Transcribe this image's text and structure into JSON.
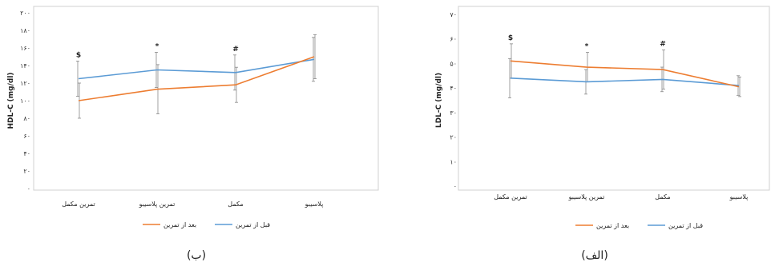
{
  "chart_data": [
    {
      "type": "line",
      "ylabel": "HDL-C (mg/dl)",
      "ylim": [
        0,
        200
      ],
      "yticks": [
        "۰",
        "۲۰",
        "۴۰",
        "۶۰",
        "۸۰",
        "۱۰۰",
        "۱۲۰",
        "۱۴۰",
        "۱۶۰",
        "۱۸۰",
        "۲۰۰"
      ],
      "categories": [
        "تمرین مکمل",
        "تمرین پلاسیبو",
        "مکمل",
        "پلاسیبو"
      ],
      "series": [
        {
          "name": "قبل از تمرین",
          "color": "#5B9BD5",
          "values": [
            125,
            135,
            132,
            147
          ],
          "errors": [
            20,
            20,
            20,
            25
          ]
        },
        {
          "name": "بعد از تمرین",
          "color": "#ED7D31",
          "values": [
            100,
            113,
            118,
            150
          ],
          "errors": [
            20,
            28,
            20,
            25
          ]
        }
      ],
      "annotations": [
        "$",
        "*",
        "#",
        ""
      ],
      "legend_position": "bottom",
      "grid": false,
      "caption": "(ب)"
    },
    {
      "type": "line",
      "ylabel": "LDL-C   (mg/dl)",
      "ylim": [
        0,
        70
      ],
      "yticks": [
        "۰",
        "۱۰",
        "۲۰",
        "۳۰",
        "۴۰",
        "۵۰",
        "۶۰",
        "۷۰"
      ],
      "categories": [
        "تمرین مکمل",
        "تمرین پلاسیبو",
        "مکمل",
        "پلاسیبو"
      ],
      "series": [
        {
          "name": "قبل از تمرین",
          "color": "#5B9BD5",
          "values": [
            44,
            42.5,
            43.5,
            41
          ],
          "errors": [
            8,
            5,
            5,
            4
          ]
        },
        {
          "name": "بعد از تمرین",
          "color": "#ED7D31",
          "values": [
            51,
            48.5,
            47.5,
            40.5
          ],
          "errors": [
            7,
            6,
            8,
            4
          ]
        }
      ],
      "annotations": [
        "$",
        "*",
        "#",
        ""
      ],
      "legend_position": "bottom",
      "grid": false,
      "caption": "(الف)"
    }
  ]
}
